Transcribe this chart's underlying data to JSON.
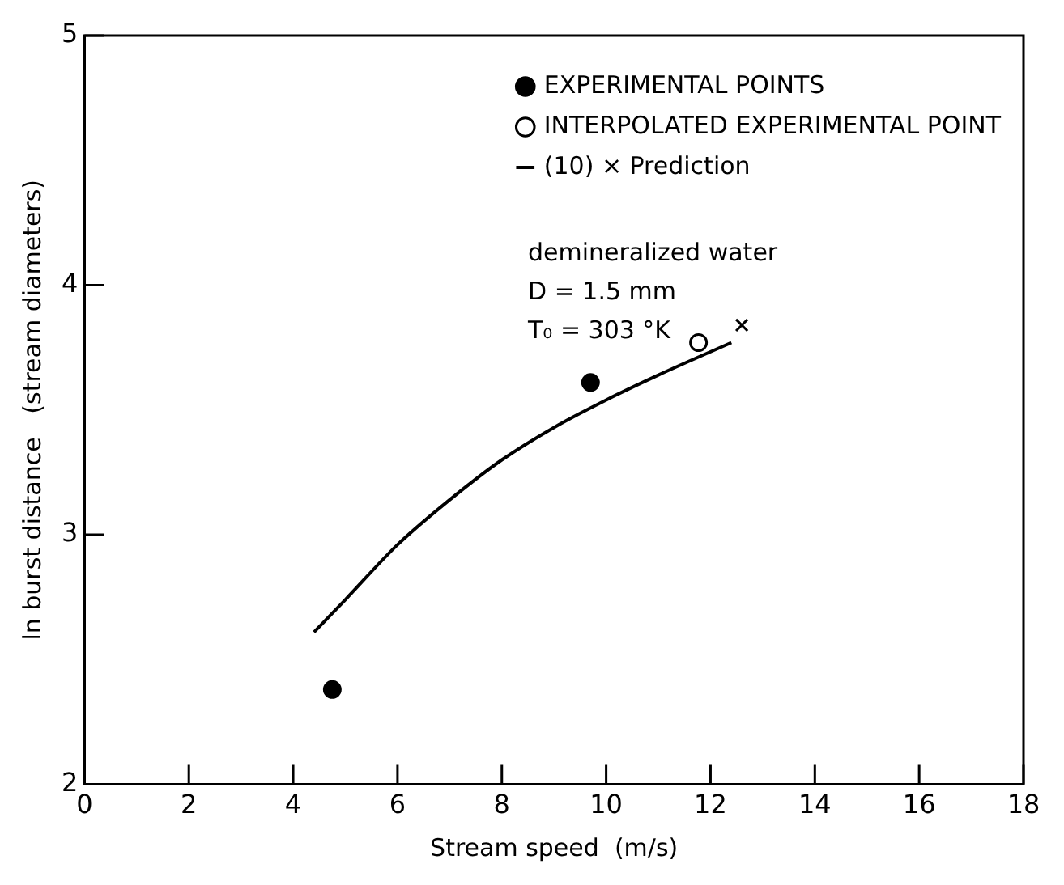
{
  "chart_data": {
    "type": "scatter",
    "xlabel": "Stream speed  (m/s)",
    "ylabel": "ln burst distance   (stream diameters)",
    "xlim": [
      0,
      18
    ],
    "xticks": [
      0,
      2,
      4,
      6,
      8,
      10,
      12,
      14,
      16,
      18
    ],
    "ylim": [
      2,
      5
    ],
    "yticks": [
      2,
      3,
      4,
      5
    ],
    "grid": false,
    "legend": "top right",
    "series": [
      {
        "type": "scatter",
        "marker": "cross",
        "color": "#000000",
        "x": [
          12.6
        ],
        "values": [
          3.84
        ]
      },
      {
        "name": "EXPERIMENTAL POINTS",
        "type": "scatter",
        "marker": "circle",
        "color": "#000000",
        "x": [
          4.75,
          9.7
        ],
        "values": [
          2.38,
          3.61
        ]
      },
      {
        "name": "INTERPOLATED EXPERIMENTAL POINT",
        "type": "scatter",
        "marker": "open-circle",
        "color": "#000000",
        "x": [
          11.77
        ],
        "values": [
          3.77
        ]
      },
      {
        "name": "(10) × Prediction",
        "type": "line",
        "marker": "none",
        "line_style": "solid",
        "color": "#000000",
        "x": [
          4.4,
          5,
          6,
          7,
          8,
          9,
          10,
          11,
          12.4
        ],
        "values": [
          2.61,
          2.74,
          2.96,
          3.14,
          3.3,
          3.43,
          3.54,
          3.64,
          3.77
        ]
      }
    ],
    "annotations": [
      "demineralized water",
      "D = 1.5 mm",
      "T₀ = 303 °K"
    ]
  }
}
